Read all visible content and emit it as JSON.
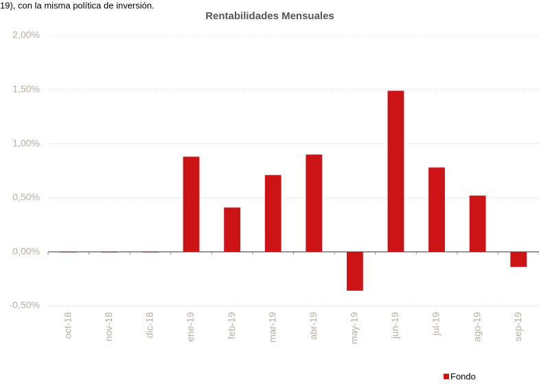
{
  "header_text": "19), con la misma política de inversión.",
  "chart_data": {
    "type": "bar",
    "title": "Rentabilidades Mensuales",
    "categories": [
      "oct-18",
      "nov-18",
      "dic-18",
      "ene-19",
      "feb-19",
      "mar-19",
      "abr-19",
      "may-19",
      "jun-19",
      "jul-19",
      "ago-19",
      "sep-19"
    ],
    "series": [
      {
        "name": "Fondo",
        "color": "#cc1417",
        "values": [
          0,
          0,
          0,
          0.88,
          0.41,
          0.71,
          0.9,
          -0.36,
          1.49,
          0.78,
          0.52,
          -0.14
        ]
      }
    ],
    "ylim": [
      -0.5,
      2
    ],
    "yticks": [
      {
        "value": -0.5,
        "label": "-0,50%"
      },
      {
        "value": 0,
        "label": "0,00%"
      },
      {
        "value": 0.5,
        "label": "0,50%"
      },
      {
        "value": 1,
        "label": "1,00%"
      },
      {
        "value": 1.5,
        "label": "1,50%"
      },
      {
        "value": 2,
        "label": "2,00%"
      }
    ],
    "grid": true,
    "legend": "bottom-right"
  }
}
